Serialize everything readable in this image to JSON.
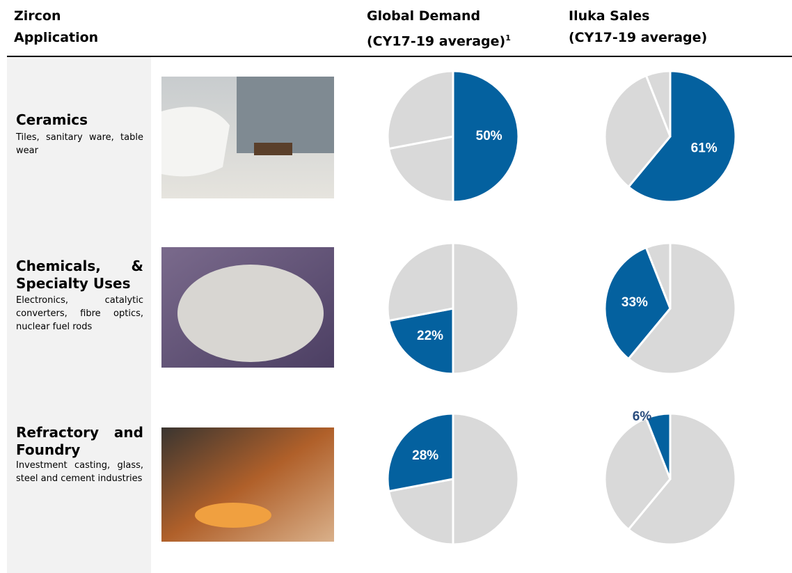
{
  "header": {
    "application": [
      "Zircon",
      "Application"
    ]
  },
  "rows": [
    {
      "title": "Ceramics",
      "description": "Tiles, sanitary ware, table wear"
    },
    {
      "title": "Chemicals, & Specialty Uses",
      "description": "Electronics, catalytic converters, fibre optics, nuclear fuel rods"
    },
    {
      "title": "Refractory and Foundry",
      "description": "Investment casting, glass, steel and cement industries"
    }
  ],
  "chart_data": [
    {
      "type": "pie",
      "title": [
        "Global Demand",
        "(CY17-19 average)"
      ],
      "footnote": "1",
      "values": [
        50,
        22,
        28
      ],
      "value_labels": [
        "50%",
        "22%",
        "28%"
      ],
      "highlight_color": "#04619f",
      "base_color": "#d9d9d9"
    },
    {
      "type": "pie",
      "title": [
        "Iluka Sales",
        "(CY17-19 average)"
      ],
      "values": [
        61,
        33,
        6
      ],
      "value_labels": [
        "61%",
        "33%",
        "6%"
      ],
      "highlight_color": "#04619f",
      "base_color": "#d9d9d9"
    }
  ]
}
